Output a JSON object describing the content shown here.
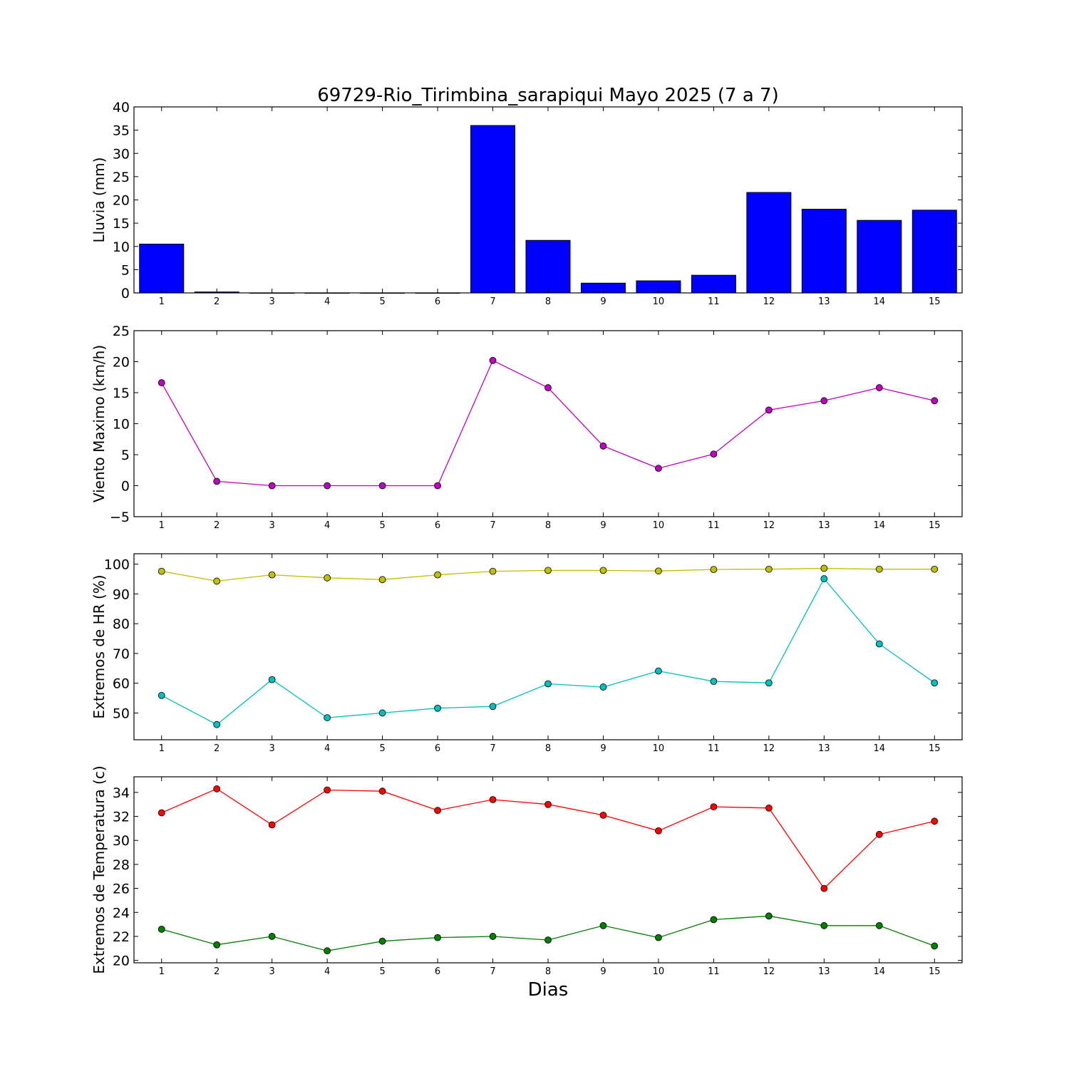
{
  "title": "69729-Rio_Tirimbina_sarapiqui Mayo 2025  (7 a 7)",
  "xlabel": "Dias",
  "chart_data": [
    {
      "type": "bar",
      "ylabel": "Lluvia (mm)",
      "ylim": [
        0,
        40
      ],
      "yticks": [
        0,
        5,
        10,
        15,
        20,
        25,
        30,
        35,
        40
      ],
      "x": [
        1,
        2,
        3,
        4,
        5,
        6,
        7,
        8,
        9,
        10,
        11,
        12,
        13,
        14,
        15
      ],
      "series": [
        {
          "color": "#0000ff",
          "values": [
            10.5,
            0.2,
            0,
            0,
            0,
            0,
            36.0,
            11.3,
            2.1,
            2.6,
            3.8,
            21.6,
            18.0,
            15.6,
            17.8
          ]
        }
      ]
    },
    {
      "type": "line",
      "ylabel": "Viento Maximo (km/h)",
      "ylim": [
        -5,
        25
      ],
      "yticks": [
        -5,
        0,
        5,
        10,
        15,
        20,
        25
      ],
      "x": [
        1,
        2,
        3,
        4,
        5,
        6,
        7,
        8,
        9,
        10,
        11,
        12,
        13,
        14,
        15
      ],
      "series": [
        {
          "color": "#bf00bf",
          "values": [
            16.6,
            0.7,
            0,
            0,
            0,
            0,
            20.2,
            15.8,
            6.4,
            2.8,
            5.1,
            12.2,
            13.7,
            15.8,
            13.7
          ]
        }
      ]
    },
    {
      "type": "line",
      "ylabel": "Extremos de HR (%)",
      "ylim": [
        41,
        103.5
      ],
      "yticks": [
        50,
        60,
        70,
        80,
        90,
        100
      ],
      "x": [
        1,
        2,
        3,
        4,
        5,
        6,
        7,
        8,
        9,
        10,
        11,
        12,
        13,
        14,
        15
      ],
      "series": [
        {
          "color": "#bfbf00",
          "values": [
            97.6,
            94.3,
            96.4,
            95.4,
            94.8,
            96.4,
            97.6,
            97.9,
            97.9,
            97.7,
            98.2,
            98.3,
            98.6,
            98.3,
            98.3
          ]
        },
        {
          "color": "#00bfbf",
          "values": [
            55.9,
            46.1,
            61.2,
            48.4,
            50.0,
            51.6,
            52.2,
            59.8,
            58.7,
            64.1,
            60.6,
            60.1,
            95.1,
            73.2,
            60.1
          ]
        }
      ]
    },
    {
      "type": "line",
      "ylabel": "Extremos de Temperatura (c)",
      "ylim": [
        19.8,
        35.3
      ],
      "yticks": [
        20,
        22,
        24,
        26,
        28,
        30,
        32,
        34
      ],
      "x": [
        1,
        2,
        3,
        4,
        5,
        6,
        7,
        8,
        9,
        10,
        11,
        12,
        13,
        14,
        15
      ],
      "series": [
        {
          "color": "#ff0000",
          "values": [
            32.3,
            34.3,
            31.3,
            34.2,
            34.1,
            32.5,
            33.4,
            33.0,
            32.1,
            30.8,
            32.8,
            32.7,
            26.0,
            30.5,
            31.6
          ]
        },
        {
          "color": "#007f00",
          "values": [
            22.6,
            21.3,
            22.0,
            20.8,
            21.6,
            21.9,
            22.0,
            21.7,
            22.9,
            21.9,
            23.4,
            23.7,
            22.9,
            22.9,
            21.2
          ]
        }
      ]
    }
  ]
}
